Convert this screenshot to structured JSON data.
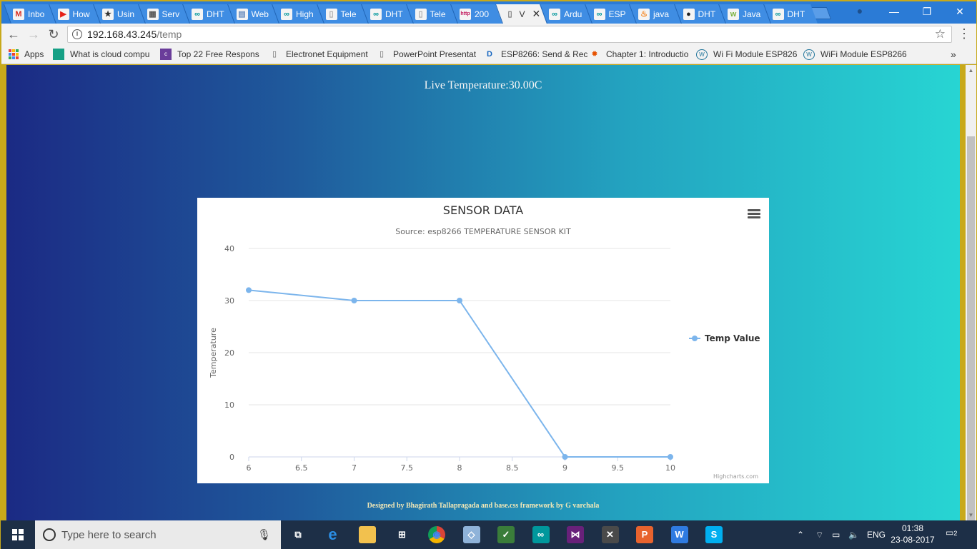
{
  "browser": {
    "tabs": [
      {
        "icon": "gmail-icon",
        "label": "Inbo",
        "color": "#d93025",
        "glyph": "M"
      },
      {
        "icon": "youtube-icon",
        "label": "How",
        "color": "#e62117",
        "glyph": "▶"
      },
      {
        "icon": "star-badge-icon",
        "label": "Usin",
        "color": "#333333",
        "glyph": "★"
      },
      {
        "icon": "page-icon",
        "label": "Serv",
        "color": "#555555",
        "glyph": "▦"
      },
      {
        "icon": "arduino-icon",
        "label": "DHT",
        "color": "#00979c",
        "glyph": "∞"
      },
      {
        "icon": "doc-icon",
        "label": "Web",
        "color": "#6a8ebf",
        "glyph": "▤"
      },
      {
        "icon": "arduino-icon",
        "label": "High",
        "color": "#00979c",
        "glyph": "∞"
      },
      {
        "icon": "doc-icon",
        "label": "Tele",
        "color": "#aaaaaa",
        "glyph": "▯"
      },
      {
        "icon": "arduino-icon",
        "label": "DHT",
        "color": "#00979c",
        "glyph": "∞"
      },
      {
        "icon": "doc-icon",
        "label": "Tele",
        "color": "#aaaaaa",
        "glyph": "▯"
      },
      {
        "icon": "http-icon",
        "label": "200",
        "color": "#c2185b",
        "glyph": "http"
      },
      {
        "icon": "doc-icon",
        "label": "V",
        "color": "#777777",
        "glyph": "▯",
        "active": true
      },
      {
        "icon": "arduino-icon",
        "label": "Ardu",
        "color": "#00979c",
        "glyph": "∞"
      },
      {
        "icon": "arduino-icon",
        "label": "ESP",
        "color": "#00979c",
        "glyph": "∞"
      },
      {
        "icon": "java-icon",
        "label": "java",
        "color": "#f58219",
        "glyph": "♨"
      },
      {
        "icon": "github-icon",
        "label": "DHT",
        "color": "#222222",
        "glyph": "●"
      },
      {
        "icon": "wc-icon",
        "label": "Java",
        "color": "#7cb342",
        "glyph": "w"
      },
      {
        "icon": "arduino-icon",
        "label": "DHT",
        "color": "#00979c",
        "glyph": "∞"
      }
    ],
    "tab_close": "✕",
    "url_host": "192.168.43.245",
    "url_path": "/temp",
    "window_controls": {
      "minimize": "—",
      "maximize": "❐",
      "close": "✕"
    }
  },
  "bookmarks": [
    {
      "label": "Apps",
      "icon": "apps-icon"
    },
    {
      "label": "What is cloud compu",
      "icon": "cloud-icon",
      "color": "#16a085",
      "glyph": ""
    },
    {
      "label": "Top 22 Free Respons",
      "icon": "colorlib-icon",
      "color": "#6a3d9a",
      "glyph": "c"
    },
    {
      "label": "Electronet Equipment",
      "icon": "page-icon",
      "color": "#666666",
      "glyph": "▯"
    },
    {
      "label": "PowerPoint Presentat",
      "icon": "page-icon",
      "color": "#666666",
      "glyph": "▯"
    },
    {
      "label": "ESP8266: Send & Rec",
      "icon": "d-icon",
      "color": "#1565c0",
      "glyph": "D"
    },
    {
      "label": "Chapter 1: Introductio",
      "icon": "gear-burst-icon",
      "color": "#e65100",
      "glyph": "✹"
    },
    {
      "label": "Wi Fi Module ESP826",
      "icon": "wordpress-icon",
      "color": "#21759b",
      "glyph": "W"
    },
    {
      "label": "WiFi Module ESP8266",
      "icon": "wordpress-icon",
      "color": "#21759b",
      "glyph": "W"
    }
  ],
  "page": {
    "live_temperature": "Live Temperature:30.00C",
    "footer": "Designed by Bhagirath Tallapragada and base.css framework by G varchala"
  },
  "chart": {
    "credits": "Highcharts.com"
  },
  "chart_data": {
    "type": "line",
    "title": "SENSOR DATA",
    "subtitle": "Source: esp8266 TEMPERATURE SENSOR KIT",
    "xlabel": "",
    "ylabel": "Temperature",
    "xlim": [
      6,
      10
    ],
    "ylim": [
      0,
      40
    ],
    "xticks": [
      "6",
      "6.5",
      "7",
      "7.5",
      "8",
      "8.5",
      "9",
      "9.5",
      "10"
    ],
    "yticks": [
      "0",
      "10",
      "20",
      "30",
      "40"
    ],
    "grid": true,
    "legend": "right",
    "series": [
      {
        "name": "Temp Value",
        "color": "#7cb5ec",
        "x": [
          6,
          7,
          8,
          9,
          10
        ],
        "y": [
          32,
          30,
          30,
          0,
          0
        ]
      }
    ]
  },
  "taskbar": {
    "search_placeholder": "Type here to search",
    "apps": [
      {
        "icon": "task-view-icon",
        "color": "transparent",
        "glyph": "⧉"
      },
      {
        "icon": "edge-icon",
        "color": "transparent",
        "glyph": "e"
      },
      {
        "icon": "file-explorer-icon",
        "color": "#f2c14e",
        "glyph": ""
      },
      {
        "icon": "store-icon",
        "color": "transparent",
        "glyph": "⊞"
      },
      {
        "icon": "chrome-icon",
        "color": "#db4437",
        "glyph": "◉"
      },
      {
        "icon": "app-icon",
        "color": "#8fb3d9",
        "glyph": "◇"
      },
      {
        "icon": "project-icon",
        "color": "#3a7d3a",
        "glyph": "✓"
      },
      {
        "icon": "arduino-icon",
        "color": "#00979c",
        "glyph": "∞"
      },
      {
        "icon": "visual-studio-icon",
        "color": "#68217a",
        "glyph": "⋈"
      },
      {
        "icon": "tools-icon",
        "color": "#4a4a4a",
        "glyph": "✕"
      },
      {
        "icon": "wps-presentation-icon",
        "color": "#e8632e",
        "glyph": "P"
      },
      {
        "icon": "wps-writer-icon",
        "color": "#2f7be1",
        "glyph": "W"
      },
      {
        "icon": "skype-icon",
        "color": "#00aff0",
        "glyph": "S"
      }
    ],
    "language": "ENG",
    "time": "01:38",
    "date": "23-08-2017",
    "notifications": "2"
  }
}
